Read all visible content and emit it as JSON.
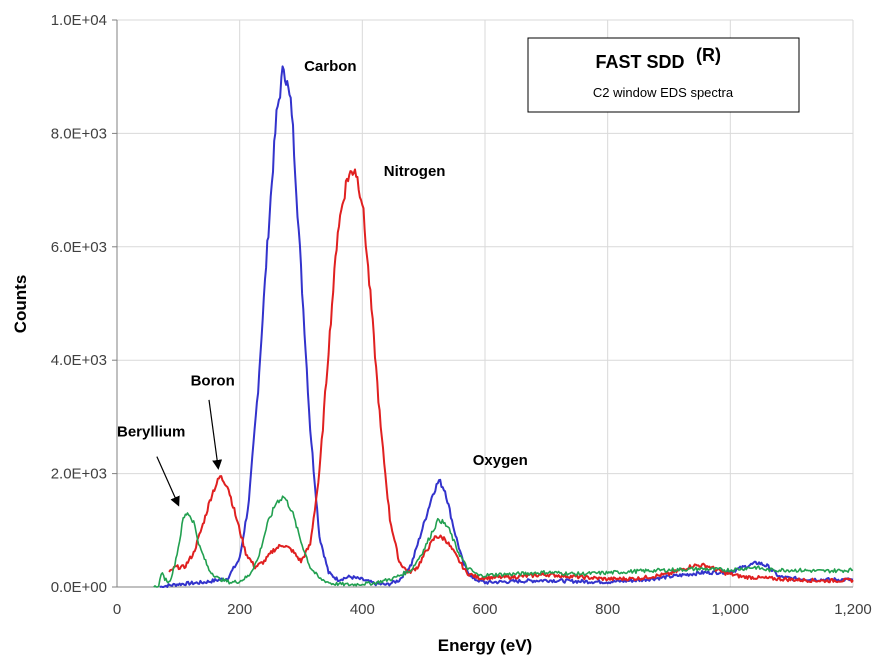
{
  "chart_data": {
    "type": "line",
    "title": "",
    "xlabel": "Energy (eV)",
    "ylabel": "Counts",
    "xlim": [
      0,
      1200
    ],
    "ylim": [
      0,
      10000
    ],
    "x_ticks": [
      0,
      200,
      400,
      600,
      800,
      1000,
      1200
    ],
    "x_tick_labels": [
      "0",
      "200",
      "400",
      "600",
      "800",
      "1,000",
      "1,200"
    ],
    "y_ticks": [
      0,
      2000,
      4000,
      6000,
      8000,
      10000
    ],
    "y_tick_labels": [
      "0.0E+00",
      "2.0E+03",
      "4.0E+03",
      "6.0E+03",
      "8.0E+03",
      "1.0E+04"
    ],
    "grid": true,
    "legend_box": {
      "title": "FAST SDD",
      "superscript": "(R)",
      "subtitle": "C2 window  EDS spectra"
    },
    "annotations": [
      {
        "text": "Carbon",
        "x": 305,
        "y": 9100
      },
      {
        "text": "Nitrogen",
        "x": 435,
        "y": 7250
      },
      {
        "text": "Oxygen",
        "x": 580,
        "y": 2150
      },
      {
        "text": "Boron",
        "x": 120,
        "y": 3550
      },
      {
        "text": "Beryllium",
        "x": 0,
        "y": 2650
      }
    ],
    "arrows": [
      {
        "from": [
          150,
          3300
        ],
        "to": [
          165,
          2100
        ]
      },
      {
        "from": [
          65,
          2300
        ],
        "to": [
          100,
          1450
        ]
      }
    ],
    "series": [
      {
        "color": "#3333cc",
        "points": [
          [
            70,
            0
          ],
          [
            80,
            20
          ],
          [
            100,
            50
          ],
          [
            140,
            80
          ],
          [
            180,
            150
          ],
          [
            200,
            500
          ],
          [
            215,
            1500
          ],
          [
            230,
            3500
          ],
          [
            245,
            6000
          ],
          [
            260,
            8300
          ],
          [
            272,
            9200
          ],
          [
            285,
            8400
          ],
          [
            300,
            5600
          ],
          [
            315,
            2800
          ],
          [
            330,
            900
          ],
          [
            345,
            250
          ],
          [
            360,
            130
          ],
          [
            380,
            180
          ],
          [
            400,
            130
          ],
          [
            420,
            60
          ],
          [
            440,
            40
          ],
          [
            460,
            120
          ],
          [
            480,
            400
          ],
          [
            500,
            1100
          ],
          [
            515,
            1650
          ],
          [
            525,
            1880
          ],
          [
            535,
            1700
          ],
          [
            550,
            1000
          ],
          [
            565,
            400
          ],
          [
            580,
            150
          ],
          [
            600,
            80
          ],
          [
            650,
            100
          ],
          [
            700,
            120
          ],
          [
            750,
            100
          ],
          [
            800,
            90
          ],
          [
            850,
            120
          ],
          [
            900,
            180
          ],
          [
            950,
            250
          ],
          [
            1000,
            270
          ],
          [
            1030,
            380
          ],
          [
            1045,
            430
          ],
          [
            1060,
            370
          ],
          [
            1080,
            180
          ],
          [
            1100,
            150
          ],
          [
            1150,
            130
          ],
          [
            1200,
            130
          ]
        ]
      },
      {
        "color": "#e02020",
        "points": [
          [
            85,
            250
          ],
          [
            95,
            350
          ],
          [
            110,
            350
          ],
          [
            125,
            600
          ],
          [
            140,
            1100
          ],
          [
            155,
            1650
          ],
          [
            168,
            1950
          ],
          [
            180,
            1800
          ],
          [
            195,
            1200
          ],
          [
            210,
            600
          ],
          [
            225,
            350
          ],
          [
            240,
            450
          ],
          [
            255,
            650
          ],
          [
            270,
            750
          ],
          [
            285,
            650
          ],
          [
            300,
            450
          ],
          [
            315,
            750
          ],
          [
            330,
            2000
          ],
          [
            345,
            4200
          ],
          [
            360,
            6300
          ],
          [
            375,
            7200
          ],
          [
            388,
            7400
          ],
          [
            400,
            6800
          ],
          [
            415,
            4900
          ],
          [
            430,
            2800
          ],
          [
            445,
            1200
          ],
          [
            460,
            450
          ],
          [
            475,
            250
          ],
          [
            490,
            350
          ],
          [
            505,
            650
          ],
          [
            520,
            900
          ],
          [
            535,
            850
          ],
          [
            550,
            600
          ],
          [
            570,
            250
          ],
          [
            590,
            160
          ],
          [
            620,
            170
          ],
          [
            650,
            180
          ],
          [
            700,
            220
          ],
          [
            750,
            180
          ],
          [
            800,
            140
          ],
          [
            850,
            150
          ],
          [
            900,
            230
          ],
          [
            940,
            380
          ],
          [
            960,
            380
          ],
          [
            990,
            250
          ],
          [
            1020,
            180
          ],
          [
            1050,
            160
          ],
          [
            1100,
            130
          ],
          [
            1150,
            110
          ],
          [
            1200,
            120
          ]
        ]
      },
      {
        "color": "#22a050",
        "points": [
          [
            60,
            0
          ],
          [
            68,
            0
          ],
          [
            72,
            250
          ],
          [
            78,
            150
          ],
          [
            85,
            80
          ],
          [
            92,
            300
          ],
          [
            100,
            700
          ],
          [
            108,
            1200
          ],
          [
            115,
            1320
          ],
          [
            125,
            1150
          ],
          [
            135,
            700
          ],
          [
            150,
            300
          ],
          [
            165,
            150
          ],
          [
            185,
            80
          ],
          [
            200,
            100
          ],
          [
            215,
            200
          ],
          [
            230,
            500
          ],
          [
            245,
            1100
          ],
          [
            260,
            1500
          ],
          [
            272,
            1600
          ],
          [
            285,
            1350
          ],
          [
            300,
            800
          ],
          [
            315,
            350
          ],
          [
            330,
            150
          ],
          [
            350,
            60
          ],
          [
            380,
            40
          ],
          [
            420,
            70
          ],
          [
            450,
            150
          ],
          [
            480,
            300
          ],
          [
            500,
            650
          ],
          [
            515,
            1000
          ],
          [
            525,
            1200
          ],
          [
            540,
            1050
          ],
          [
            555,
            650
          ],
          [
            570,
            350
          ],
          [
            590,
            200
          ],
          [
            620,
            220
          ],
          [
            650,
            230
          ],
          [
            700,
            260
          ],
          [
            750,
            230
          ],
          [
            800,
            250
          ],
          [
            850,
            280
          ],
          [
            900,
            300
          ],
          [
            950,
            320
          ],
          [
            1000,
            300
          ],
          [
            1040,
            350
          ],
          [
            1060,
            300
          ],
          [
            1100,
            300
          ],
          [
            1150,
            280
          ],
          [
            1200,
            300
          ]
        ]
      }
    ]
  }
}
